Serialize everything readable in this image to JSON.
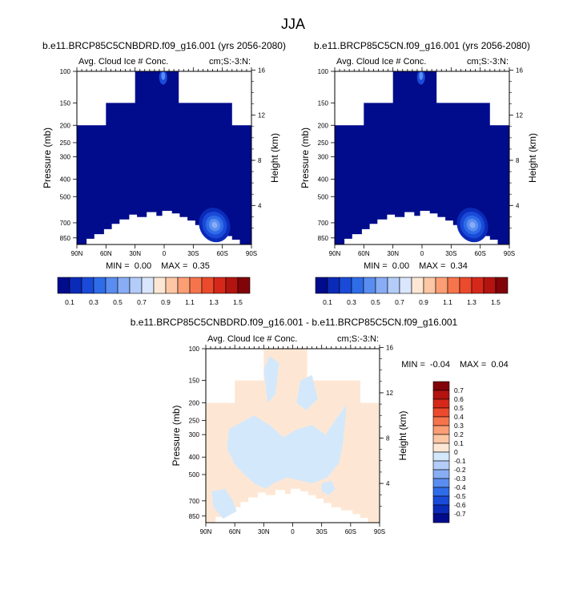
{
  "title": "JJA",
  "colors": {
    "frame": "#000000",
    "background": "#ffffff",
    "cloud_fill": "#000c8c",
    "diff_positive": "#fde7d4",
    "diff_negative": "#d4e8fb"
  },
  "chart_data": [
    {
      "id": "top-left",
      "type": "heatmap",
      "title": "b.e11.BRCP85C5CNBDRD.f09_g16.001 (yrs 2056-2080)",
      "left_label": "Avg. Cloud Ice # Conc.",
      "right_label": "cm;S:-3:N:",
      "xlabel": "",
      "ylabel": "Pressure (mb)",
      "y2label": "Height (km)",
      "x_ticks": [
        "90N",
        "60N",
        "30N",
        "0",
        "30S",
        "60S",
        "90S"
      ],
      "x_values": [
        90,
        60,
        30,
        0,
        -30,
        -60,
        -90
      ],
      "y_ticks": [
        "100",
        "150",
        "200",
        "250",
        "300",
        "400",
        "500",
        "700",
        "850"
      ],
      "y_values": [
        100,
        150,
        200,
        250,
        300,
        400,
        500,
        700,
        850
      ],
      "y2_ticks": [
        "16",
        "12",
        "8",
        "4"
      ],
      "y2_values": [
        16,
        12,
        8,
        4
      ],
      "ylim": [
        100,
        925
      ],
      "xlim": [
        90,
        -90
      ],
      "stats": {
        "min_label": "MIN =",
        "min": "0.00",
        "max_label": "MAX =",
        "max": "0.35"
      },
      "max_value": 0.35
    },
    {
      "id": "top-right",
      "type": "heatmap",
      "title": "b.e11.BRCP85C5CN.f09_g16.001 (yrs 2056-2080)",
      "left_label": "Avg. Cloud Ice # Conc.",
      "right_label": "cm;S:-3:N:",
      "xlabel": "",
      "ylabel": "Pressure (mb)",
      "y2label": "Height (km)",
      "x_ticks": [
        "90N",
        "60N",
        "30N",
        "0",
        "30S",
        "60S",
        "90S"
      ],
      "x_values": [
        90,
        60,
        30,
        0,
        -30,
        -60,
        -90
      ],
      "y_ticks": [
        "100",
        "150",
        "200",
        "250",
        "300",
        "400",
        "500",
        "700",
        "850"
      ],
      "y_values": [
        100,
        150,
        200,
        250,
        300,
        400,
        500,
        700,
        850
      ],
      "y2_ticks": [
        "16",
        "12",
        "8",
        "4"
      ],
      "y2_values": [
        16,
        12,
        8,
        4
      ],
      "ylim": [
        100,
        925
      ],
      "xlim": [
        90,
        -90
      ],
      "stats": {
        "min_label": "MIN =",
        "min": "0.00",
        "max_label": "MAX =",
        "max": "0.34"
      },
      "max_value": 0.34
    },
    {
      "id": "bottom-diff",
      "type": "heatmap",
      "title": "b.e11.BRCP85C5CNBDRD.f09_g16.001 - b.e11.BRCP85C5CN.f09_g16.001",
      "left_label": "Avg. Cloud Ice # Conc.",
      "right_label": "cm;S:-3:N:",
      "xlabel": "",
      "ylabel": "Pressure (mb)",
      "y2label": "Height (km)",
      "x_ticks": [
        "90N",
        "60N",
        "30N",
        "0",
        "30S",
        "60S",
        "90S"
      ],
      "x_values": [
        90,
        60,
        30,
        0,
        -30,
        -60,
        -90
      ],
      "y_ticks": [
        "100",
        "150",
        "200",
        "250",
        "300",
        "400",
        "500",
        "700",
        "850"
      ],
      "y_values": [
        100,
        150,
        200,
        250,
        300,
        400,
        500,
        700,
        850
      ],
      "y2_ticks": [
        "16",
        "12",
        "8",
        "4"
      ],
      "y2_values": [
        16,
        12,
        8,
        4
      ],
      "ylim": [
        100,
        925
      ],
      "xlim": [
        90,
        -90
      ],
      "stats": {
        "min_label": "MIN =",
        "min": "-0.04",
        "max_label": "MAX =",
        "max": "0.04"
      },
      "min_value": -0.04,
      "max_value": 0.04
    }
  ],
  "colorbars": {
    "absolute": {
      "labels": [
        "0.1",
        "0.3",
        "0.5",
        "0.7",
        "0.9",
        "1.1",
        "1.3",
        "1.5"
      ],
      "colors": [
        "#000c8c",
        "#0a2ab8",
        "#1a4ad8",
        "#2f6ce8",
        "#5a8df0",
        "#88adf5",
        "#b3ccf8",
        "#dae6fb",
        "#fde7d4",
        "#fdc6a4",
        "#fb9e74",
        "#f6744c",
        "#ec4a2c",
        "#d6281a",
        "#b31410",
        "#800408"
      ]
    },
    "difference": {
      "labels": [
        "0.7",
        "0.6",
        "0.5",
        "0.4",
        "0.3",
        "0.2",
        "0.1",
        "0",
        "-0.1",
        "-0.2",
        "-0.3",
        "-0.4",
        "-0.5",
        "-0.6",
        "-0.7"
      ],
      "colors": [
        "#800408",
        "#b31410",
        "#d6281a",
        "#ec4a2c",
        "#f6744c",
        "#fb9e74",
        "#fdc6a4",
        "#fde7d4",
        "#d4e8fb",
        "#b3ccf8",
        "#88adf5",
        "#5a8df0",
        "#2f6ce8",
        "#1a4ad8",
        "#0a2ab8",
        "#000c8c"
      ]
    }
  }
}
